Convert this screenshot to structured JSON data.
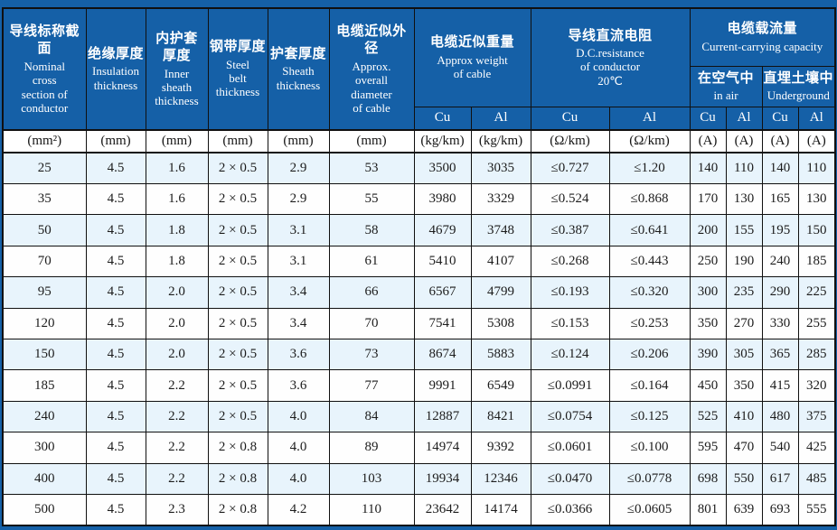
{
  "colors": {
    "header_bg": "#1560a7",
    "header_text": "#ffffff",
    "row_alt_bg": "#e8f4fc",
    "row_bg": "#fefefe",
    "border": "#101010"
  },
  "header": {
    "cols": [
      {
        "zh": "导线标称截面",
        "en": "Nominal\ncross\nsection of\nconductor",
        "unit": "(mm²)"
      },
      {
        "zh": "绝缘厚度",
        "en": "Insulation\nthickness",
        "unit": "(mm)"
      },
      {
        "zh": "内护套\n厚度",
        "en": "Inner\nsheath\nthickness",
        "unit": "(mm)"
      },
      {
        "zh": "钢带厚度",
        "en": "Steel\nbelt\nthickness",
        "unit": "(mm)"
      },
      {
        "zh": "护套厚度",
        "en": "Sheath\nthickness",
        "unit": "(mm)"
      },
      {
        "zh": "电缆近似外径",
        "en": "Approx.\noverall\ndiameter\nof cable",
        "unit": "(mm)"
      }
    ],
    "groups": {
      "weight": {
        "zh": "电缆近似重量",
        "en": "Approx weight\nof cable"
      },
      "resistance": {
        "zh": "导线直流电阻",
        "en": "D.C.resistance\nof conductor\n20℃"
      },
      "capacity": {
        "zh": "电缆载流量",
        "en": "Current-carrying capacity"
      },
      "air": {
        "zh": "在空气中",
        "en": "in air"
      },
      "underground": {
        "zh": "直埋土壤中",
        "en": "Underground"
      }
    },
    "metal_row": [
      "Cu",
      "Al",
      "Cu",
      "Al",
      "Cu",
      "Al",
      "Cu",
      "Al"
    ],
    "units_row": [
      "(mm²)",
      "(mm)",
      "(mm)",
      "(mm)",
      "(mm)",
      "(mm)",
      "(kg/km)",
      "(kg/km)",
      "(Ω/km)",
      "(Ω/km)",
      "(A)",
      "(A)",
      "(A)",
      "(A)"
    ]
  },
  "rows": [
    [
      "25",
      "4.5",
      "1.6",
      "2 × 0.5",
      "2.9",
      "53",
      "3500",
      "3035",
      "≤0.727",
      "≤1.20",
      "140",
      "110",
      "140",
      "110"
    ],
    [
      "35",
      "4.5",
      "1.6",
      "2 × 0.5",
      "2.9",
      "55",
      "3980",
      "3329",
      "≤0.524",
      "≤0.868",
      "170",
      "130",
      "165",
      "130"
    ],
    [
      "50",
      "4.5",
      "1.8",
      "2 × 0.5",
      "3.1",
      "58",
      "4679",
      "3748",
      "≤0.387",
      "≤0.641",
      "200",
      "155",
      "195",
      "150"
    ],
    [
      "70",
      "4.5",
      "1.8",
      "2 × 0.5",
      "3.1",
      "61",
      "5410",
      "4107",
      "≤0.268",
      "≤0.443",
      "250",
      "190",
      "240",
      "185"
    ],
    [
      "95",
      "4.5",
      "2.0",
      "2 × 0.5",
      "3.4",
      "66",
      "6567",
      "4799",
      "≤0.193",
      "≤0.320",
      "300",
      "235",
      "290",
      "225"
    ],
    [
      "120",
      "4.5",
      "2.0",
      "2 × 0.5",
      "3.4",
      "70",
      "7541",
      "5308",
      "≤0.153",
      "≤0.253",
      "350",
      "270",
      "330",
      "255"
    ],
    [
      "150",
      "4.5",
      "2.0",
      "2 × 0.5",
      "3.6",
      "73",
      "8674",
      "5883",
      "≤0.124",
      "≤0.206",
      "390",
      "305",
      "365",
      "285"
    ],
    [
      "185",
      "4.5",
      "2.2",
      "2 × 0.5",
      "3.6",
      "77",
      "9991",
      "6549",
      "≤0.0991",
      "≤0.164",
      "450",
      "350",
      "415",
      "320"
    ],
    [
      "240",
      "4.5",
      "2.2",
      "2 × 0.5",
      "4.0",
      "84",
      "12887",
      "8421",
      "≤0.0754",
      "≤0.125",
      "525",
      "410",
      "480",
      "375"
    ],
    [
      "300",
      "4.5",
      "2.2",
      "2 × 0.8",
      "4.0",
      "89",
      "14974",
      "9392",
      "≤0.0601",
      "≤0.100",
      "595",
      "470",
      "540",
      "425"
    ],
    [
      "400",
      "4.5",
      "2.2",
      "2 × 0.8",
      "4.0",
      "103",
      "19934",
      "12346",
      "≤0.0470",
      "≤0.0778",
      "698",
      "550",
      "617",
      "485"
    ],
    [
      "500",
      "4.5",
      "2.3",
      "2 × 0.8",
      "4.2",
      "110",
      "23642",
      "14174",
      "≤0.0366",
      "≤0.0605",
      "801",
      "639",
      "693",
      "555"
    ]
  ]
}
